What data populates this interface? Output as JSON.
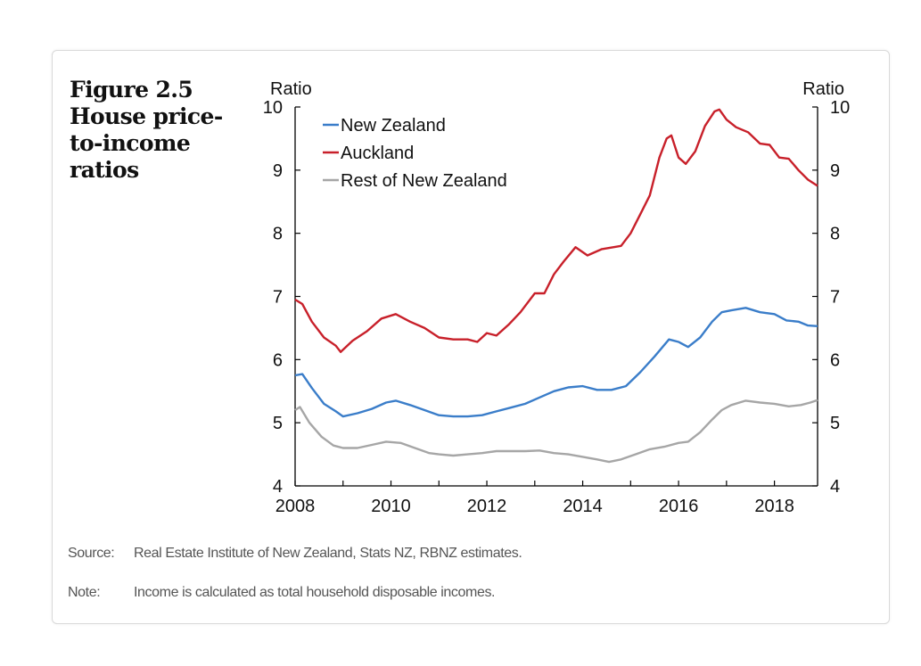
{
  "figure": {
    "title_lines": [
      "Figure 2.5",
      "House price-",
      "to-income",
      "ratios"
    ]
  },
  "footnotes": {
    "source_label": "Source:",
    "source_text": "Real Estate Institute of New Zealand, Stats NZ, RBNZ estimates.",
    "note_label": "Note:",
    "note_text": "Income is calculated as total household disposable incomes."
  },
  "chart_data": {
    "type": "line",
    "title": "House price-to-income ratios",
    "ylabel_left": "Ratio",
    "ylabel_right": "Ratio",
    "xlim": [
      2008,
      2018.9
    ],
    "ylim": [
      4,
      10
    ],
    "xticks": [
      2008,
      2010,
      2012,
      2014,
      2016,
      2018
    ],
    "yticks": [
      4,
      5,
      6,
      7,
      8,
      9,
      10
    ],
    "legend_position": "top-left",
    "series": [
      {
        "name": "New Zealand",
        "color": "#3a7dc9",
        "points": [
          [
            2008.0,
            5.75
          ],
          [
            2008.15,
            5.77
          ],
          [
            2008.35,
            5.55
          ],
          [
            2008.6,
            5.3
          ],
          [
            2008.85,
            5.18
          ],
          [
            2009.0,
            5.1
          ],
          [
            2009.3,
            5.15
          ],
          [
            2009.6,
            5.22
          ],
          [
            2009.9,
            5.32
          ],
          [
            2010.1,
            5.35
          ],
          [
            2010.4,
            5.28
          ],
          [
            2010.7,
            5.2
          ],
          [
            2011.0,
            5.12
          ],
          [
            2011.3,
            5.1
          ],
          [
            2011.6,
            5.1
          ],
          [
            2011.9,
            5.12
          ],
          [
            2012.2,
            5.18
          ],
          [
            2012.5,
            5.24
          ],
          [
            2012.8,
            5.3
          ],
          [
            2013.1,
            5.4
          ],
          [
            2013.4,
            5.5
          ],
          [
            2013.7,
            5.56
          ],
          [
            2014.0,
            5.58
          ],
          [
            2014.3,
            5.52
          ],
          [
            2014.6,
            5.52
          ],
          [
            2014.9,
            5.58
          ],
          [
            2015.2,
            5.8
          ],
          [
            2015.5,
            6.05
          ],
          [
            2015.8,
            6.32
          ],
          [
            2016.0,
            6.28
          ],
          [
            2016.2,
            6.2
          ],
          [
            2016.45,
            6.35
          ],
          [
            2016.7,
            6.6
          ],
          [
            2016.9,
            6.75
          ],
          [
            2017.1,
            6.78
          ],
          [
            2017.4,
            6.82
          ],
          [
            2017.7,
            6.75
          ],
          [
            2018.0,
            6.72
          ],
          [
            2018.25,
            6.62
          ],
          [
            2018.5,
            6.6
          ],
          [
            2018.7,
            6.54
          ],
          [
            2018.9,
            6.53
          ]
        ]
      },
      {
        "name": "Auckland",
        "color": "#c8202a",
        "points": [
          [
            2008.0,
            6.95
          ],
          [
            2008.15,
            6.88
          ],
          [
            2008.35,
            6.6
          ],
          [
            2008.6,
            6.35
          ],
          [
            2008.85,
            6.22
          ],
          [
            2008.95,
            6.12
          ],
          [
            2009.2,
            6.3
          ],
          [
            2009.5,
            6.45
          ],
          [
            2009.8,
            6.65
          ],
          [
            2010.1,
            6.72
          ],
          [
            2010.4,
            6.6
          ],
          [
            2010.7,
            6.5
          ],
          [
            2011.0,
            6.35
          ],
          [
            2011.3,
            6.32
          ],
          [
            2011.6,
            6.32
          ],
          [
            2011.8,
            6.28
          ],
          [
            2012.0,
            6.42
          ],
          [
            2012.2,
            6.38
          ],
          [
            2012.45,
            6.55
          ],
          [
            2012.7,
            6.75
          ],
          [
            2013.0,
            7.05
          ],
          [
            2013.2,
            7.05
          ],
          [
            2013.4,
            7.35
          ],
          [
            2013.6,
            7.55
          ],
          [
            2013.85,
            7.78
          ],
          [
            2014.1,
            7.65
          ],
          [
            2014.4,
            7.75
          ],
          [
            2014.8,
            7.8
          ],
          [
            2015.0,
            8.0
          ],
          [
            2015.2,
            8.3
          ],
          [
            2015.4,
            8.6
          ],
          [
            2015.6,
            9.2
          ],
          [
            2015.75,
            9.5
          ],
          [
            2015.85,
            9.55
          ],
          [
            2016.0,
            9.2
          ],
          [
            2016.15,
            9.1
          ],
          [
            2016.35,
            9.3
          ],
          [
            2016.55,
            9.7
          ],
          [
            2016.75,
            9.93
          ],
          [
            2016.85,
            9.96
          ],
          [
            2017.0,
            9.8
          ],
          [
            2017.2,
            9.68
          ],
          [
            2017.45,
            9.6
          ],
          [
            2017.7,
            9.42
          ],
          [
            2017.9,
            9.4
          ],
          [
            2018.1,
            9.2
          ],
          [
            2018.3,
            9.18
          ],
          [
            2018.5,
            9.0
          ],
          [
            2018.7,
            8.85
          ],
          [
            2018.9,
            8.75
          ]
        ]
      },
      {
        "name": "Rest of New Zealand",
        "color": "#a6a6a6",
        "points": [
          [
            2008.0,
            5.2
          ],
          [
            2008.1,
            5.25
          ],
          [
            2008.3,
            5.0
          ],
          [
            2008.55,
            4.78
          ],
          [
            2008.8,
            4.64
          ],
          [
            2009.0,
            4.6
          ],
          [
            2009.3,
            4.6
          ],
          [
            2009.6,
            4.65
          ],
          [
            2009.9,
            4.7
          ],
          [
            2010.2,
            4.68
          ],
          [
            2010.5,
            4.6
          ],
          [
            2010.8,
            4.52
          ],
          [
            2011.0,
            4.5
          ],
          [
            2011.3,
            4.48
          ],
          [
            2011.6,
            4.5
          ],
          [
            2011.9,
            4.52
          ],
          [
            2012.2,
            4.55
          ],
          [
            2012.5,
            4.55
          ],
          [
            2012.8,
            4.55
          ],
          [
            2013.1,
            4.56
          ],
          [
            2013.4,
            4.52
          ],
          [
            2013.7,
            4.5
          ],
          [
            2014.0,
            4.46
          ],
          [
            2014.3,
            4.42
          ],
          [
            2014.55,
            4.38
          ],
          [
            2014.8,
            4.42
          ],
          [
            2015.1,
            4.5
          ],
          [
            2015.4,
            4.58
          ],
          [
            2015.7,
            4.62
          ],
          [
            2016.0,
            4.68
          ],
          [
            2016.2,
            4.7
          ],
          [
            2016.45,
            4.85
          ],
          [
            2016.7,
            5.05
          ],
          [
            2016.9,
            5.2
          ],
          [
            2017.1,
            5.28
          ],
          [
            2017.4,
            5.35
          ],
          [
            2017.7,
            5.32
          ],
          [
            2018.0,
            5.3
          ],
          [
            2018.3,
            5.26
          ],
          [
            2018.55,
            5.28
          ],
          [
            2018.75,
            5.32
          ],
          [
            2018.9,
            5.36
          ]
        ]
      }
    ]
  }
}
